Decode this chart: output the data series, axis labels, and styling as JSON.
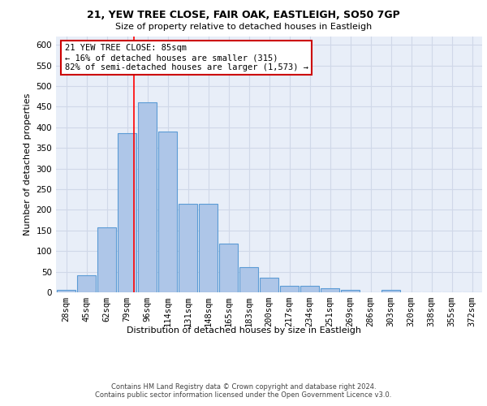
{
  "title_line1": "21, YEW TREE CLOSE, FAIR OAK, EASTLEIGH, SO50 7GP",
  "title_line2": "Size of property relative to detached houses in Eastleigh",
  "xlabel": "Distribution of detached houses by size in Eastleigh",
  "ylabel": "Number of detached properties",
  "bin_labels": [
    "28sqm",
    "45sqm",
    "62sqm",
    "79sqm",
    "96sqm",
    "114sqm",
    "131sqm",
    "148sqm",
    "165sqm",
    "183sqm",
    "200sqm",
    "217sqm",
    "234sqm",
    "251sqm",
    "269sqm",
    "286sqm",
    "303sqm",
    "320sqm",
    "338sqm",
    "355sqm",
    "372sqm"
  ],
  "bar_heights": [
    5,
    42,
    158,
    385,
    460,
    390,
    215,
    215,
    118,
    62,
    35,
    15,
    15,
    10,
    6,
    0,
    6,
    0,
    0,
    0,
    0
  ],
  "bar_color": "#aec6e8",
  "bar_edge_color": "#5b9bd5",
  "grid_color": "#d0d8e8",
  "background_color": "#e8eef8",
  "annotation_text": "21 YEW TREE CLOSE: 85sqm\n← 16% of detached houses are smaller (315)\n82% of semi-detached houses are larger (1,573) →",
  "annotation_box_color": "#ffffff",
  "annotation_border_color": "#cc0000",
  "ylim": [
    0,
    620
  ],
  "yticks": [
    0,
    50,
    100,
    150,
    200,
    250,
    300,
    350,
    400,
    450,
    500,
    550,
    600
  ],
  "footer_line1": "Contains HM Land Registry data © Crown copyright and database right 2024.",
  "footer_line2": "Contains public sector information licensed under the Open Government Licence v3.0."
}
